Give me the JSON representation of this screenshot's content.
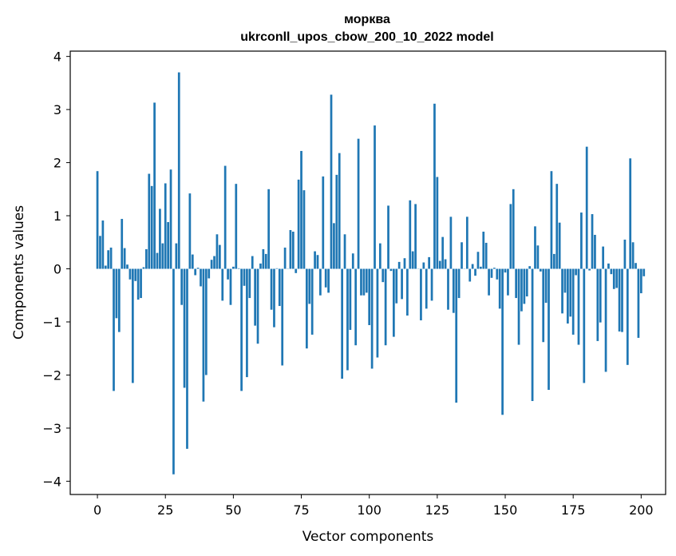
{
  "chart_data": {
    "type": "bar",
    "title": "морква",
    "subtitle": "ukrconll_upos_cbow_200_10_2022 model",
    "xlabel": "Vector components",
    "ylabel": "Components values",
    "xlim": [
      -10,
      209
    ],
    "ylim": [
      -4.25,
      4.1
    ],
    "xticks": [
      0,
      25,
      50,
      75,
      100,
      125,
      150,
      175,
      200
    ],
    "yticks": [
      -4,
      -3,
      -2,
      -1,
      0,
      1,
      2,
      3,
      4
    ],
    "bar_color": "#1f77b4",
    "grid": false,
    "values": [
      1.84,
      0.62,
      0.91,
      0.06,
      0.35,
      0.4,
      -2.3,
      -0.93,
      -1.19,
      0.94,
      0.39,
      0.08,
      -0.2,
      -2.15,
      -0.23,
      -0.58,
      -0.55,
      0.03,
      0.37,
      1.79,
      1.56,
      3.13,
      0.3,
      1.13,
      0.48,
      1.61,
      0.88,
      1.87,
      -3.87,
      0.48,
      3.7,
      -0.68,
      -2.24,
      -3.39,
      1.42,
      0.27,
      -0.12,
      0.02,
      -0.33,
      -2.5,
      -2.0,
      -0.18,
      0.17,
      0.24,
      0.65,
      0.45,
      -0.6,
      1.94,
      -0.2,
      -0.68,
      0.04,
      1.6,
      0.01,
      -2.3,
      -0.32,
      -2.04,
      -0.55,
      0.24,
      -1.07,
      -1.41,
      0.1,
      0.37,
      0.28,
      1.5,
      -0.77,
      -1.1,
      0.01,
      -0.7,
      -1.82,
      0.4,
      0.0,
      0.73,
      0.7,
      -0.08,
      1.68,
      2.22,
      1.48,
      -1.5,
      -0.66,
      -1.24,
      0.33,
      0.26,
      -0.5,
      1.74,
      -0.35,
      -0.45,
      3.28,
      0.86,
      1.77,
      2.18,
      -2.07,
      0.65,
      -1.91,
      -1.15,
      0.29,
      -1.44,
      2.45,
      -0.5,
      -0.5,
      -0.45,
      -1.06,
      -1.88,
      2.7,
      -1.67,
      0.48,
      -0.25,
      -1.44,
      1.19,
      -0.04,
      -1.28,
      -0.65,
      0.13,
      -0.57,
      0.2,
      -0.88,
      1.29,
      0.33,
      1.22,
      0.0,
      -0.97,
      0.12,
      -0.75,
      0.22,
      -0.6,
      3.11,
      1.73,
      0.15,
      0.6,
      0.18,
      -0.77,
      0.98,
      -0.83,
      -2.52,
      -0.55,
      0.5,
      0.0,
      0.98,
      -0.24,
      0.09,
      -0.13,
      0.32,
      0.04,
      0.7,
      0.49,
      -0.5,
      -0.17,
      0.02,
      -0.2,
      -0.75,
      -2.75,
      -0.07,
      -0.5,
      1.22,
      1.5,
      -0.55,
      -1.43,
      -0.8,
      -0.66,
      -0.52,
      0.05,
      -2.49,
      0.8,
      0.44,
      -0.05,
      -1.38,
      -0.64,
      -2.28,
      1.84,
      0.28,
      1.6,
      0.87,
      -0.84,
      -0.45,
      -1.03,
      -0.9,
      -1.24,
      -0.12,
      -1.43,
      1.06,
      -2.15,
      2.3,
      -0.03,
      1.03,
      0.64,
      -1.36,
      -1.01,
      0.42,
      -1.94,
      0.1,
      -0.1,
      -0.38,
      -0.36,
      -1.18,
      -1.19,
      0.55,
      -1.81,
      2.08,
      0.5,
      0.11,
      -1.3,
      -0.46,
      -0.14
    ]
  }
}
